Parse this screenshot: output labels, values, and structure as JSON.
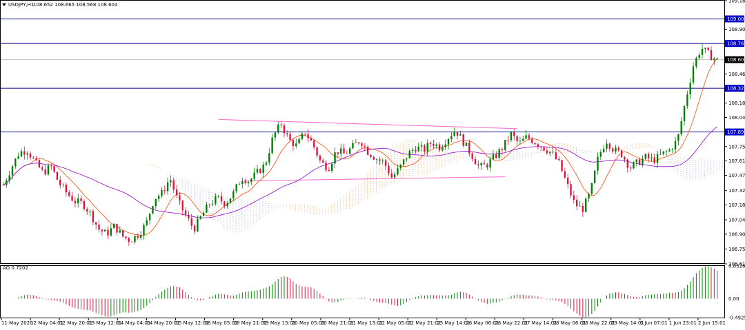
{
  "chart_data": [
    {
      "type": "candlestick",
      "symbol_timeframe": "USDJPY,H1",
      "ohlc_header": "108.652 108.665 108.568 108.604",
      "y_ticks": [
        "109.180",
        "108.900",
        "108.465",
        "108.180",
        "108.040",
        "107.755",
        "107.615",
        "107.475",
        "107.325",
        "107.185",
        "107.040",
        "106.900",
        "106.755",
        "106.610"
      ],
      "levels": [
        {
          "value": 109.002,
          "label": "109.002",
          "kind": "horizontal-line"
        },
        {
          "value": 108.762,
          "label": "108.762",
          "kind": "horizontal-line"
        },
        {
          "value": 108.325,
          "label": "108.325",
          "kind": "horizontal-line"
        },
        {
          "value": 107.898,
          "label": "107.898",
          "kind": "horizontal-line"
        }
      ],
      "current_price": {
        "value": 108.604,
        "label": "108.604"
      },
      "x_labels": [
        "11 May 2020",
        "12 May 04:01",
        "12 May 20:01",
        "13 May 12:01",
        "14 May 04:01",
        "14 May 20:01",
        "15 May 12:01",
        "18 May 05:01",
        "18 May 21:01",
        "19 May 13:01",
        "20 May 05:01",
        "20 May 21:01",
        "21 May 13:01",
        "22 May 05:01",
        "22 May 21:01",
        "25 May 14:01",
        "26 May 06:01",
        "26 May 22:01",
        "27 May 14:01",
        "28 May 06:01",
        "28 May 22:01",
        "29 May 14:01",
        "1 Jun 07:01",
        "1 Jun 23:01",
        "2 Jun 15:01"
      ],
      "price_path": [
        [
          0,
          107.38
        ],
        [
          2,
          107.55
        ],
        [
          4,
          107.7
        ],
        [
          6,
          107.72
        ],
        [
          8,
          107.6
        ],
        [
          10,
          107.5
        ],
        [
          12,
          107.56
        ],
        [
          14,
          107.4
        ],
        [
          16,
          107.3
        ],
        [
          18,
          107.22
        ],
        [
          20,
          107.2
        ],
        [
          22,
          107.1
        ],
        [
          24,
          106.95
        ],
        [
          26,
          106.9
        ],
        [
          28,
          106.98
        ],
        [
          30,
          106.88
        ],
        [
          32,
          106.84
        ],
        [
          34,
          106.9
        ],
        [
          36,
          107.0
        ],
        [
          38,
          107.25
        ],
        [
          40,
          107.3
        ],
        [
          42,
          107.45
        ],
        [
          44,
          107.22
        ],
        [
          46,
          107.08
        ],
        [
          48,
          106.95
        ],
        [
          50,
          107.08
        ],
        [
          52,
          107.2
        ],
        [
          54,
          107.25
        ],
        [
          56,
          107.2
        ],
        [
          58,
          107.3
        ],
        [
          60,
          107.45
        ],
        [
          62,
          107.42
        ],
        [
          64,
          107.5
        ],
        [
          66,
          107.58
        ],
        [
          68,
          107.85
        ],
        [
          70,
          107.98
        ],
        [
          72,
          107.82
        ],
        [
          74,
          107.76
        ],
        [
          76,
          107.9
        ],
        [
          78,
          107.78
        ],
        [
          80,
          107.6
        ],
        [
          82,
          107.55
        ],
        [
          84,
          107.72
        ],
        [
          86,
          107.68
        ],
        [
          88,
          107.75
        ],
        [
          90,
          107.82
        ],
        [
          92,
          107.7
        ],
        [
          94,
          107.64
        ],
        [
          96,
          107.6
        ],
        [
          98,
          107.45
        ],
        [
          100,
          107.55
        ],
        [
          102,
          107.68
        ],
        [
          104,
          107.75
        ],
        [
          106,
          107.72
        ],
        [
          108,
          107.8
        ],
        [
          110,
          107.75
        ],
        [
          112,
          107.84
        ],
        [
          114,
          107.92
        ],
        [
          116,
          107.8
        ],
        [
          118,
          107.68
        ],
        [
          120,
          107.55
        ],
        [
          122,
          107.58
        ],
        [
          124,
          107.66
        ],
        [
          126,
          107.75
        ],
        [
          128,
          107.88
        ],
        [
          130,
          107.78
        ],
        [
          132,
          107.85
        ],
        [
          134,
          107.8
        ],
        [
          136,
          107.75
        ],
        [
          138,
          107.7
        ],
        [
          140,
          107.6
        ],
        [
          142,
          107.4
        ],
        [
          144,
          107.2
        ],
        [
          146,
          107.14
        ],
        [
          148,
          107.3
        ],
        [
          150,
          107.65
        ],
        [
          152,
          107.82
        ],
        [
          154,
          107.72
        ],
        [
          156,
          107.68
        ],
        [
          158,
          107.55
        ],
        [
          160,
          107.6
        ],
        [
          162,
          107.65
        ],
        [
          164,
          107.62
        ],
        [
          166,
          107.68
        ],
        [
          168,
          107.72
        ],
        [
          170,
          107.82
        ],
        [
          172,
          108.2
        ],
        [
          174,
          108.55
        ],
        [
          176,
          108.72
        ],
        [
          178,
          108.65
        ],
        [
          180,
          108.6
        ]
      ],
      "ao_label": "AO 0.7202",
      "ao_ticks": [
        "0.8526",
        "0.00",
        "-0.4925"
      ],
      "ao_range": [
        -0.4925,
        0.8526
      ],
      "y_range": [
        106.61,
        109.18
      ]
    }
  ]
}
